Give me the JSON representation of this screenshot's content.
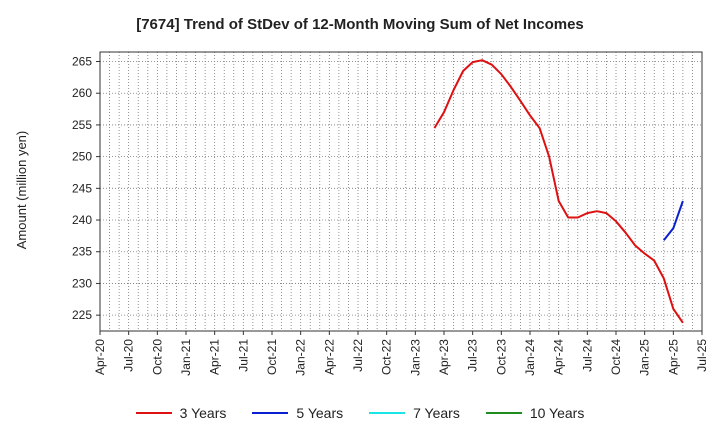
{
  "chart_data": {
    "type": "line",
    "title": "[7674]  Trend of StDev of 12-Month Moving Sum of Net Incomes",
    "xlabel": "",
    "ylabel": "Amount (million yen)",
    "ylim": [
      222.5,
      266.5
    ],
    "yticks": [
      225,
      230,
      235,
      240,
      245,
      250,
      255,
      260,
      265
    ],
    "xlim": [
      "2020-04",
      "2025-07"
    ],
    "xtick_labels": [
      "Apr-20",
      "Jul-20",
      "Oct-20",
      "Jan-21",
      "Apr-21",
      "Jul-21",
      "Oct-21",
      "Jan-22",
      "Apr-22",
      "Jul-22",
      "Oct-22",
      "Jan-23",
      "Apr-23",
      "Jul-23",
      "Oct-23",
      "Jan-24",
      "Apr-24",
      "Jul-24",
      "Oct-24",
      "Jan-25",
      "Apr-25",
      "Jul-25"
    ],
    "grid": true,
    "legend_position": "bottom",
    "series": [
      {
        "name": "3 Years",
        "color": "#dd1111",
        "points": [
          [
            "2023-03",
            254.5
          ],
          [
            "2023-04",
            257.0
          ],
          [
            "2023-05",
            260.5
          ],
          [
            "2023-06",
            263.5
          ],
          [
            "2023-07",
            264.9
          ],
          [
            "2023-08",
            265.2
          ],
          [
            "2023-09",
            264.5
          ],
          [
            "2023-10",
            263.0
          ],
          [
            "2023-11",
            261.0
          ],
          [
            "2023-12",
            258.8
          ],
          [
            "2024-01",
            256.5
          ],
          [
            "2024-02",
            254.5
          ],
          [
            "2024-03",
            250.0
          ],
          [
            "2024-04",
            243.0
          ],
          [
            "2024-05",
            240.4
          ],
          [
            "2024-06",
            240.4
          ],
          [
            "2024-07",
            241.1
          ],
          [
            "2024-08",
            241.4
          ],
          [
            "2024-09",
            241.1
          ],
          [
            "2024-10",
            239.8
          ],
          [
            "2024-11",
            238.0
          ],
          [
            "2024-12",
            236.0
          ],
          [
            "2025-01",
            234.7
          ],
          [
            "2025-02",
            233.6
          ],
          [
            "2025-03",
            230.8
          ],
          [
            "2025-04",
            226.0
          ],
          [
            "2025-05",
            223.8
          ]
        ]
      },
      {
        "name": "5 Years",
        "color": "#0a1fd0",
        "points": [
          [
            "2025-03",
            236.8
          ],
          [
            "2025-04",
            238.7
          ],
          [
            "2025-05",
            243.0
          ]
        ]
      },
      {
        "name": "7 Years",
        "color": "#19e6e6",
        "points": []
      },
      {
        "name": "10 Years",
        "color": "#1e8c1e",
        "points": []
      }
    ]
  }
}
